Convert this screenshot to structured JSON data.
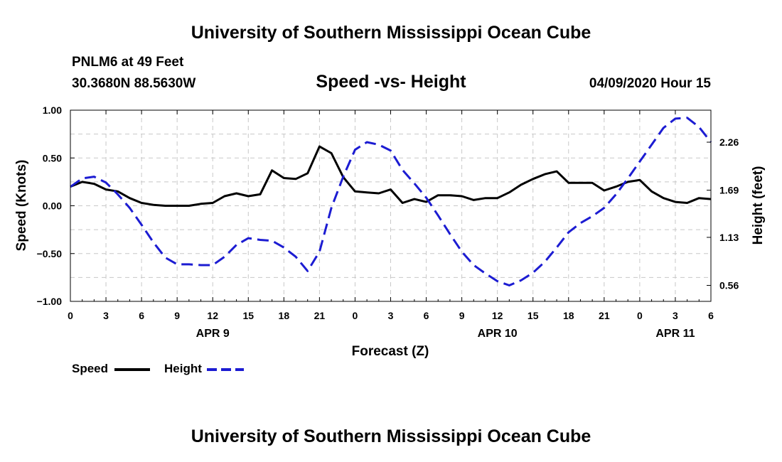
{
  "header": {
    "title": "University of Southern Mississippi Ocean Cube",
    "footer_title": "University of Southern Mississippi Ocean Cube",
    "station": "PNLM6 at 49 Feet",
    "coords": "30.3680N 88.5630W",
    "date": "04/09/2020 Hour 15"
  },
  "chart_data": {
    "type": "line",
    "title": "Speed -vs- Height",
    "xlabel": "Forecast (Z)",
    "ylabel": "Speed (Knots)",
    "y2label": "Height (feet)",
    "xlim": [
      0,
      54
    ],
    "ylim": [
      -1.0,
      1.0
    ],
    "y2lim": [
      0.37,
      2.64
    ],
    "grid": true,
    "legend_position": "bottom-left",
    "x_ticks": [
      0,
      3,
      6,
      9,
      12,
      15,
      18,
      21,
      24,
      27,
      30,
      33,
      36,
      39,
      42,
      45,
      48,
      51,
      54
    ],
    "x_tick_labels": [
      "0",
      "3",
      "6",
      "9",
      "12",
      "15",
      "18",
      "21",
      "0",
      "3",
      "6",
      "9",
      "12",
      "15",
      "18",
      "21",
      "0",
      "3",
      "6"
    ],
    "day_labels": [
      {
        "label": "APR 9",
        "x": 12
      },
      {
        "label": "APR 10",
        "x": 36
      },
      {
        "label": "APR 11",
        "x": 51
      }
    ],
    "y_ticks": [
      -1.0,
      -0.5,
      0.0,
      0.5,
      1.0
    ],
    "y_tick_labels": [
      "−1.00",
      "−0.50",
      "0.00",
      "0.50",
      "1.00"
    ],
    "y2_ticks": [
      0.56,
      1.13,
      1.69,
      2.26
    ],
    "y2_tick_labels": [
      "0.56",
      "1.13",
      "1.69",
      "2.26"
    ],
    "series": [
      {
        "name": "Speed",
        "axis": "left",
        "color": "#000000",
        "dash": "solid",
        "points": [
          [
            0,
            0.2
          ],
          [
            1,
            0.25
          ],
          [
            2,
            0.23
          ],
          [
            3,
            0.17
          ],
          [
            4,
            0.15
          ],
          [
            5,
            0.08
          ],
          [
            6,
            0.03
          ],
          [
            7,
            0.01
          ],
          [
            8,
            0.0
          ],
          [
            9,
            0.0
          ],
          [
            10,
            0.0
          ],
          [
            11,
            0.02
          ],
          [
            12,
            0.03
          ],
          [
            13,
            0.1
          ],
          [
            14,
            0.13
          ],
          [
            15,
            0.1
          ],
          [
            16,
            0.12
          ],
          [
            17,
            0.37
          ],
          [
            18,
            0.29
          ],
          [
            19,
            0.28
          ],
          [
            20,
            0.34
          ],
          [
            21,
            0.62
          ],
          [
            22,
            0.55
          ],
          [
            23,
            0.3
          ],
          [
            24,
            0.15
          ],
          [
            25,
            0.14
          ],
          [
            26,
            0.13
          ],
          [
            27,
            0.17
          ],
          [
            28,
            0.03
          ],
          [
            29,
            0.07
          ],
          [
            30,
            0.04
          ],
          [
            31,
            0.11
          ],
          [
            32,
            0.11
          ],
          [
            33,
            0.1
          ],
          [
            34,
            0.06
          ],
          [
            35,
            0.08
          ],
          [
            36,
            0.08
          ],
          [
            37,
            0.14
          ],
          [
            38,
            0.22
          ],
          [
            39,
            0.28
          ],
          [
            40,
            0.33
          ],
          [
            41,
            0.36
          ],
          [
            42,
            0.24
          ],
          [
            43,
            0.24
          ],
          [
            44,
            0.24
          ],
          [
            45,
            0.16
          ],
          [
            46,
            0.2
          ],
          [
            47,
            0.25
          ],
          [
            48,
            0.27
          ],
          [
            49,
            0.15
          ],
          [
            50,
            0.08
          ],
          [
            51,
            0.04
          ],
          [
            52,
            0.03
          ],
          [
            53,
            0.08
          ],
          [
            54,
            0.07
          ]
        ]
      },
      {
        "name": "Height",
        "axis": "right",
        "color": "#1c1cd2",
        "dash": "dashed",
        "points": [
          [
            0,
            1.73
          ],
          [
            1,
            1.83
          ],
          [
            2,
            1.85
          ],
          [
            3,
            1.78
          ],
          [
            4,
            1.64
          ],
          [
            5,
            1.48
          ],
          [
            6,
            1.28
          ],
          [
            7,
            1.07
          ],
          [
            8,
            0.89
          ],
          [
            9,
            0.81
          ],
          [
            10,
            0.81
          ],
          [
            11,
            0.8
          ],
          [
            12,
            0.8
          ],
          [
            13,
            0.9
          ],
          [
            14,
            1.04
          ],
          [
            15,
            1.12
          ],
          [
            16,
            1.1
          ],
          [
            17,
            1.09
          ],
          [
            18,
            1.01
          ],
          [
            19,
            0.9
          ],
          [
            20,
            0.73
          ],
          [
            21,
            0.96
          ],
          [
            22,
            1.48
          ],
          [
            23,
            1.85
          ],
          [
            24,
            2.17
          ],
          [
            25,
            2.26
          ],
          [
            26,
            2.23
          ],
          [
            27,
            2.16
          ],
          [
            28,
            1.93
          ],
          [
            29,
            1.77
          ],
          [
            30,
            1.6
          ],
          [
            31,
            1.39
          ],
          [
            32,
            1.17
          ],
          [
            33,
            0.96
          ],
          [
            34,
            0.8
          ],
          [
            35,
            0.7
          ],
          [
            36,
            0.61
          ],
          [
            37,
            0.56
          ],
          [
            38,
            0.62
          ],
          [
            39,
            0.71
          ],
          [
            40,
            0.84
          ],
          [
            41,
            1.01
          ],
          [
            42,
            1.19
          ],
          [
            43,
            1.3
          ],
          [
            44,
            1.38
          ],
          [
            45,
            1.48
          ],
          [
            46,
            1.64
          ],
          [
            47,
            1.83
          ],
          [
            48,
            2.03
          ],
          [
            49,
            2.23
          ],
          [
            50,
            2.43
          ],
          [
            51,
            2.54
          ],
          [
            52,
            2.55
          ],
          [
            53,
            2.44
          ],
          [
            54,
            2.26
          ]
        ]
      }
    ]
  }
}
